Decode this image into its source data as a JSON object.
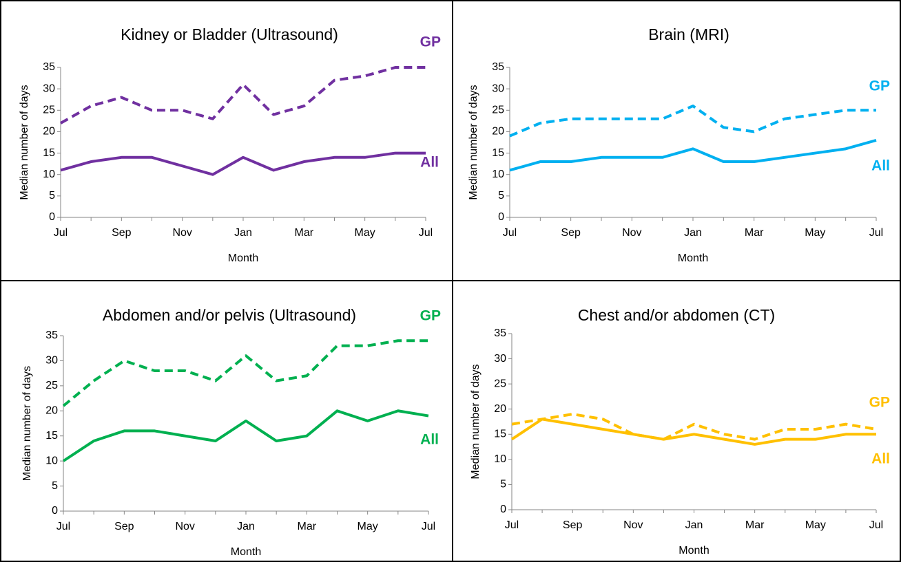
{
  "chart_data": [
    {
      "type": "line",
      "title": "Kidney or Bladder (Ultrasound)",
      "x_label": "Month",
      "y_label": "Median number of days",
      "categories": [
        "Jul",
        null,
        "Sep",
        null,
        "Nov",
        null,
        "Jan",
        null,
        "Mar",
        null,
        "May",
        null,
        "Jul"
      ],
      "ylim": [
        0,
        35
      ],
      "yticks": [
        0,
        5,
        10,
        15,
        20,
        25,
        30,
        35
      ],
      "series": [
        {
          "name": "GP",
          "color": "#7030a0",
          "line_style": "dashed",
          "values": [
            22,
            26,
            28,
            25,
            25,
            23,
            31,
            24,
            26,
            32,
            33,
            35,
            35
          ]
        },
        {
          "name": "All",
          "color": "#7030a0",
          "line_style": "solid",
          "values": [
            11,
            13,
            14,
            14,
            12,
            10,
            14,
            11,
            13,
            14,
            14,
            15,
            15
          ]
        }
      ]
    },
    {
      "type": "line",
      "title": "Brain (MRI)",
      "x_label": "Month",
      "y_label": "Median number of days",
      "categories": [
        "Jul",
        null,
        "Sep",
        null,
        "Nov",
        null,
        "Jan",
        null,
        "Mar",
        null,
        "May",
        null,
        "Jul"
      ],
      "ylim": [
        0,
        35
      ],
      "yticks": [
        0,
        5,
        10,
        15,
        20,
        25,
        30,
        35
      ],
      "series": [
        {
          "name": "GP",
          "color": "#00b0f0",
          "line_style": "dashed",
          "values": [
            19,
            22,
            23,
            23,
            23,
            23,
            26,
            21,
            20,
            23,
            24,
            25,
            25
          ]
        },
        {
          "name": "All",
          "color": "#00b0f0",
          "line_style": "solid",
          "values": [
            11,
            13,
            13,
            14,
            14,
            14,
            16,
            13,
            13,
            14,
            15,
            16,
            18
          ]
        }
      ]
    },
    {
      "type": "line",
      "title": "Abdomen and/or pelvis (Ultrasound)",
      "x_label": "Month",
      "y_label": "Median number of days",
      "categories": [
        "Jul",
        null,
        "Sep",
        null,
        "Nov",
        null,
        "Jan",
        null,
        "Mar",
        null,
        "May",
        null,
        "Jul"
      ],
      "ylim": [
        0,
        35
      ],
      "yticks": [
        0,
        5,
        10,
        15,
        20,
        25,
        30,
        35
      ],
      "series": [
        {
          "name": "GP",
          "color": "#00b050",
          "line_style": "dashed",
          "values": [
            21,
            26,
            30,
            28,
            28,
            26,
            31,
            26,
            27,
            33,
            33,
            34,
            34
          ]
        },
        {
          "name": "All",
          "color": "#00b050",
          "line_style": "solid",
          "values": [
            10,
            14,
            16,
            16,
            15,
            14,
            18,
            14,
            15,
            20,
            18,
            20,
            19
          ]
        }
      ]
    },
    {
      "type": "line",
      "title": "Chest and/or abdomen (CT)",
      "x_label": "Month",
      "y_label": "Median number of days",
      "categories": [
        "Jul",
        null,
        "Sep",
        null,
        "Nov",
        null,
        "Jan",
        null,
        "Mar",
        null,
        "May",
        null,
        "Jul"
      ],
      "ylim": [
        0,
        35
      ],
      "yticks": [
        0,
        5,
        10,
        15,
        20,
        25,
        30,
        35
      ],
      "series": [
        {
          "name": "GP",
          "color": "#ffc000",
          "line_style": "dashed",
          "values": [
            17,
            18,
            19,
            18,
            15,
            14,
            17,
            15,
            14,
            16,
            16,
            17,
            16
          ]
        },
        {
          "name": "All",
          "color": "#ffc000",
          "line_style": "solid",
          "values": [
            14,
            18,
            17,
            16,
            15,
            14,
            15,
            14,
            13,
            14,
            14,
            15,
            15
          ]
        }
      ]
    }
  ]
}
